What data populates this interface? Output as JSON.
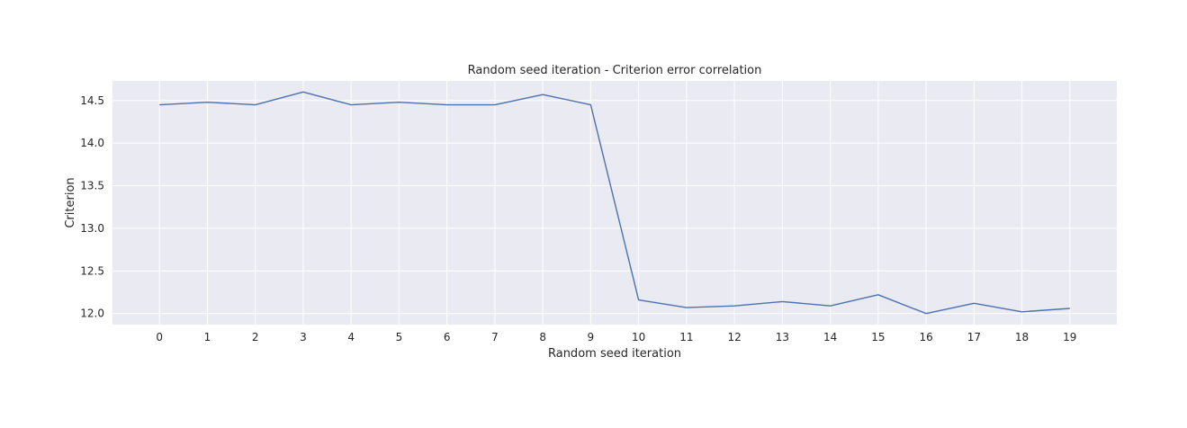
{
  "chart_data": {
    "type": "line",
    "title": "Random seed iteration - Criterion error correlation",
    "xlabel": "Random seed iteration",
    "ylabel": "Criterion",
    "x": [
      0,
      1,
      2,
      3,
      4,
      5,
      6,
      7,
      8,
      9,
      10,
      11,
      12,
      13,
      14,
      15,
      16,
      17,
      18,
      19
    ],
    "series": [
      {
        "values": [
          14.45,
          14.48,
          14.45,
          14.6,
          14.45,
          14.48,
          14.45,
          14.45,
          14.57,
          14.45,
          12.16,
          12.07,
          12.09,
          12.14,
          12.09,
          12.22,
          12.0,
          12.12,
          12.02,
          12.06
        ],
        "color": "#4c72b0"
      }
    ],
    "xticks": [
      "0",
      "1",
      "2",
      "3",
      "4",
      "5",
      "6",
      "7",
      "8",
      "9",
      "10",
      "11",
      "12",
      "13",
      "14",
      "15",
      "16",
      "17",
      "18",
      "19"
    ],
    "yticks": [
      "12.0",
      "12.5",
      "13.0",
      "13.5",
      "14.0",
      "14.5"
    ],
    "xlim": [
      -0.98,
      19.98
    ],
    "ylim": [
      11.87,
      14.73
    ],
    "grid": true,
    "legend": "none",
    "colors": {
      "plot_background": "#eaeaf2",
      "grid": "#ffffff",
      "text": "#262626"
    }
  }
}
